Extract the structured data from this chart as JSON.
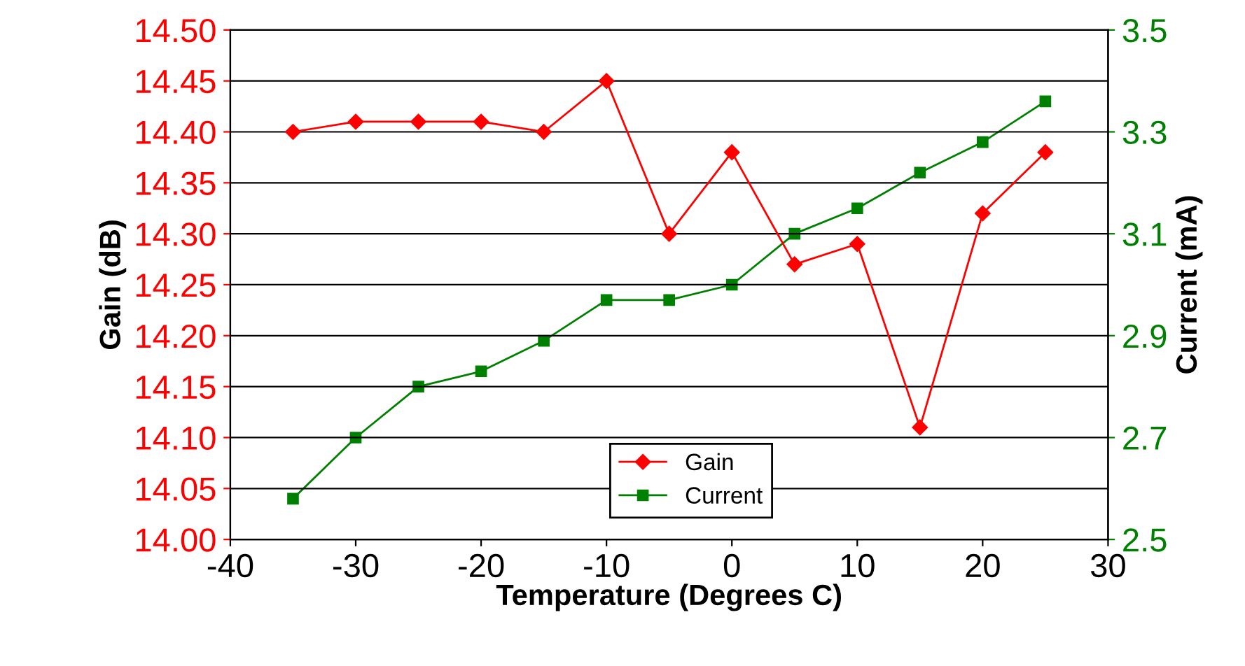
{
  "chart_data": {
    "type": "line",
    "xlabel": "Temperature (Degrees C)",
    "ylabel": "Gain (dB)",
    "y2label": "Current (mA)",
    "x": [
      -35,
      -30,
      -25,
      -20,
      -15,
      -10,
      -5,
      0,
      5,
      10,
      15,
      20,
      25
    ],
    "series": [
      {
        "name": "Gain",
        "color": "#ff0000",
        "marker": "diamond",
        "values": [
          14.4,
          14.41,
          14.41,
          14.41,
          14.4,
          14.45,
          14.3,
          14.38,
          14.27,
          14.29,
          14.11,
          14.32,
          14.38
        ]
      },
      {
        "name": "Current",
        "color": "#008000",
        "marker": "square",
        "axis": "y2",
        "values": [
          2.58,
          2.7,
          2.8,
          2.83,
          2.89,
          2.97,
          2.97,
          3.0,
          3.1,
          3.15,
          3.22,
          3.28,
          3.36
        ]
      }
    ],
    "xlim": [
      -40,
      30
    ],
    "xticks": [
      -40,
      -30,
      -20,
      -10,
      0,
      10,
      20,
      30
    ],
    "ylim": [
      14.0,
      14.5
    ],
    "yticks": [
      {
        "value": 14.0,
        "label": "14.00"
      },
      {
        "value": 14.05,
        "label": "14.05"
      },
      {
        "value": 14.1,
        "label": "14.10"
      },
      {
        "value": 14.15,
        "label": "14.15"
      },
      {
        "value": 14.2,
        "label": "14.20"
      },
      {
        "value": 14.25,
        "label": "14.25"
      },
      {
        "value": 14.3,
        "label": "14.30"
      },
      {
        "value": 14.35,
        "label": "14.35"
      },
      {
        "value": 14.4,
        "label": "14.40"
      },
      {
        "value": 14.45,
        "label": "14.45"
      },
      {
        "value": 14.5,
        "label": "14.50"
      }
    ],
    "y2lim": [
      2.5,
      3.5
    ],
    "y2ticks": [
      2.5,
      2.7,
      2.9,
      3.1,
      3.3,
      3.5
    ],
    "grid": "y",
    "legend": "bottom",
    "line_style": "solid"
  }
}
